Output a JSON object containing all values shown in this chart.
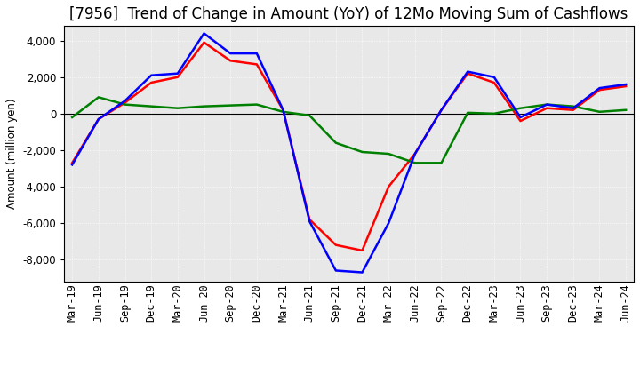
{
  "title": "[7956]  Trend of Change in Amount (YoY) of 12Mo Moving Sum of Cashflows",
  "ylabel": "Amount (million yen)",
  "x_labels": [
    "Mar-19",
    "Jun-19",
    "Sep-19",
    "Dec-19",
    "Mar-20",
    "Jun-20",
    "Sep-20",
    "Dec-20",
    "Mar-21",
    "Jun-21",
    "Sep-21",
    "Dec-21",
    "Mar-22",
    "Jun-22",
    "Sep-22",
    "Dec-22",
    "Mar-23",
    "Jun-23",
    "Sep-23",
    "Dec-23",
    "Mar-24",
    "Jun-24"
  ],
  "operating": [
    -2700,
    -300,
    600,
    1700,
    2000,
    3900,
    2900,
    2700,
    200,
    -5800,
    -7200,
    -7500,
    -4000,
    -2200,
    200,
    2200,
    1700,
    -400,
    300,
    200,
    1300,
    1500
  ],
  "investing": [
    -200,
    900,
    500,
    400,
    300,
    400,
    450,
    500,
    100,
    -100,
    -1600,
    -2100,
    -2200,
    -2700,
    -2700,
    50,
    0,
    300,
    500,
    400,
    100,
    200
  ],
  "free": [
    -2800,
    -300,
    700,
    2100,
    2200,
    4400,
    3300,
    3300,
    200,
    -5900,
    -8600,
    -8700,
    -6000,
    -2200,
    200,
    2300,
    2000,
    -200,
    500,
    300,
    1400,
    1600
  ],
  "operating_color": "#ff0000",
  "investing_color": "#008000",
  "free_color": "#0000ff",
  "ylim": [
    -9200,
    4800
  ],
  "yticks": [
    -8000,
    -6000,
    -4000,
    -2000,
    0,
    2000,
    4000
  ],
  "plot_bg_color": "#e8e8e8",
  "fig_bg_color": "#ffffff",
  "grid_color": "#ffffff",
  "title_fontsize": 12,
  "axis_fontsize": 8.5,
  "legend_fontsize": 9.5,
  "linewidth": 1.8
}
